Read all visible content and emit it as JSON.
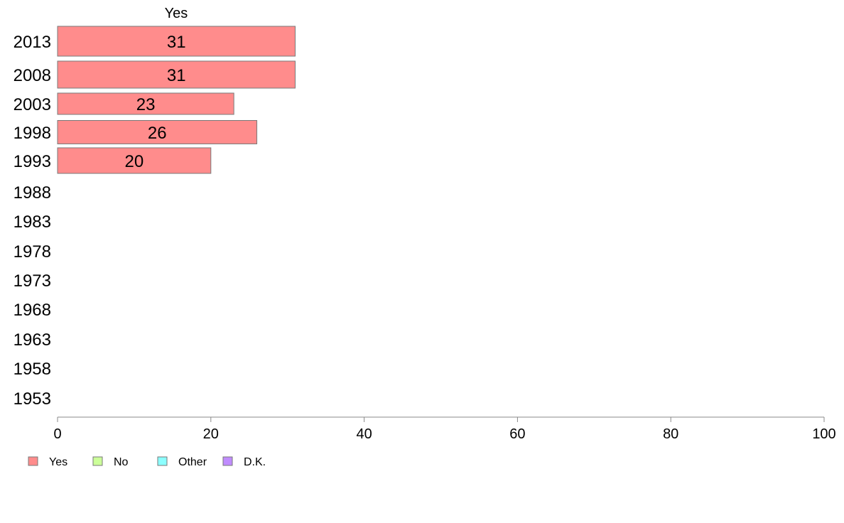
{
  "chart_data": {
    "type": "bar",
    "orientation": "horizontal",
    "stacked": true,
    "header": "Yes",
    "categories": [
      "2013",
      "2008",
      "2003",
      "1998",
      "1993",
      "1988",
      "1983",
      "1978",
      "1973",
      "1968",
      "1963",
      "1958",
      "1953"
    ],
    "series": [
      {
        "name": "Yes",
        "color": "#ff8c8c",
        "values": [
          31,
          31,
          23,
          26,
          20,
          null,
          null,
          null,
          null,
          null,
          null,
          null,
          null
        ]
      },
      {
        "name": "No",
        "color": "#ccff99",
        "values": [
          null,
          null,
          null,
          null,
          null,
          null,
          null,
          null,
          null,
          null,
          null,
          null,
          null
        ]
      },
      {
        "name": "Other",
        "color": "#8cffff",
        "values": [
          null,
          null,
          null,
          null,
          null,
          null,
          null,
          null,
          null,
          null,
          null,
          null,
          null
        ]
      },
      {
        "name": "D.K.",
        "color": "#c08cff",
        "values": [
          null,
          null,
          null,
          null,
          null,
          null,
          null,
          null,
          null,
          null,
          null,
          null,
          null
        ]
      }
    ],
    "data_labels": [
      "31",
      "31",
      "23",
      "26",
      "20",
      "",
      "",
      "",
      "",
      "",
      "",
      "",
      ""
    ],
    "xlim": [
      0,
      100
    ],
    "xticks": [
      "0",
      "20",
      "40",
      "60",
      "80",
      "100"
    ],
    "grid": false,
    "legend_position": "bottom-left"
  }
}
